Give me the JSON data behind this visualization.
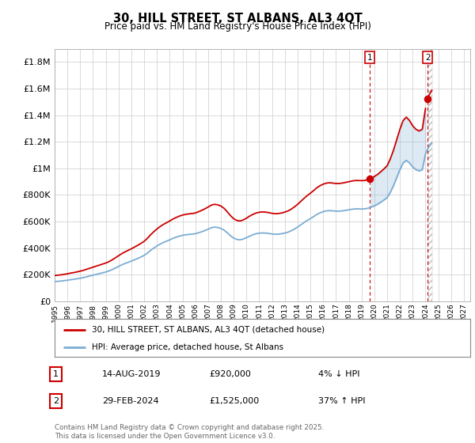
{
  "title": "30, HILL STREET, ST ALBANS, AL3 4QT",
  "subtitle": "Price paid vs. HM Land Registry's House Price Index (HPI)",
  "ylim": [
    0,
    1900000
  ],
  "yticks": [
    0,
    200000,
    400000,
    600000,
    800000,
    1000000,
    1200000,
    1400000,
    1600000,
    1800000
  ],
  "ytick_labels": [
    "£0",
    "£200K",
    "£400K",
    "£600K",
    "£800K",
    "£1M",
    "£1.2M",
    "£1.4M",
    "£1.6M",
    "£1.8M"
  ],
  "xlim_start": 1995.0,
  "xlim_end": 2027.5,
  "xticks": [
    1995,
    1996,
    1997,
    1998,
    1999,
    2000,
    2001,
    2002,
    2003,
    2004,
    2005,
    2006,
    2007,
    2008,
    2009,
    2010,
    2011,
    2012,
    2013,
    2014,
    2015,
    2016,
    2017,
    2018,
    2019,
    2020,
    2021,
    2022,
    2023,
    2024,
    2025,
    2026,
    2027
  ],
  "hpi_color": "#7aadd4",
  "sale_color": "#cc0000",
  "background_color": "#ffffff",
  "grid_color": "#cccccc",
  "legend_label_sale": "30, HILL STREET, ST ALBANS, AL3 4QT (detached house)",
  "legend_label_hpi": "HPI: Average price, detached house, St Albans",
  "annotation_1_label": "1",
  "annotation_1_date": "14-AUG-2019",
  "annotation_1_price": "£920,000",
  "annotation_1_hpi": "4% ↓ HPI",
  "annotation_1_year": 2019.62,
  "annotation_1_value": 920000,
  "annotation_2_label": "2",
  "annotation_2_date": "29-FEB-2024",
  "annotation_2_price": "£1,525,000",
  "annotation_2_hpi": "37% ↑ HPI",
  "annotation_2_year": 2024.17,
  "annotation_2_value": 1525000,
  "footnote": "Contains HM Land Registry data © Crown copyright and database right 2025.\nThis data is licensed under the Open Government Licence v3.0.",
  "hpi_data_x": [
    1995.0,
    1995.25,
    1995.5,
    1995.75,
    1996.0,
    1996.25,
    1996.5,
    1996.75,
    1997.0,
    1997.25,
    1997.5,
    1997.75,
    1998.0,
    1998.25,
    1998.5,
    1998.75,
    1999.0,
    1999.25,
    1999.5,
    1999.75,
    2000.0,
    2000.25,
    2000.5,
    2000.75,
    2001.0,
    2001.25,
    2001.5,
    2001.75,
    2002.0,
    2002.25,
    2002.5,
    2002.75,
    2003.0,
    2003.25,
    2003.5,
    2003.75,
    2004.0,
    2004.25,
    2004.5,
    2004.75,
    2005.0,
    2005.25,
    2005.5,
    2005.75,
    2006.0,
    2006.25,
    2006.5,
    2006.75,
    2007.0,
    2007.25,
    2007.5,
    2007.75,
    2008.0,
    2008.25,
    2008.5,
    2008.75,
    2009.0,
    2009.25,
    2009.5,
    2009.75,
    2010.0,
    2010.25,
    2010.5,
    2010.75,
    2011.0,
    2011.25,
    2011.5,
    2011.75,
    2012.0,
    2012.25,
    2012.5,
    2012.75,
    2013.0,
    2013.25,
    2013.5,
    2013.75,
    2014.0,
    2014.25,
    2014.5,
    2014.75,
    2015.0,
    2015.25,
    2015.5,
    2015.75,
    2016.0,
    2016.25,
    2016.5,
    2016.75,
    2017.0,
    2017.25,
    2017.5,
    2017.75,
    2018.0,
    2018.25,
    2018.5,
    2018.75,
    2019.0,
    2019.25,
    2019.5,
    2019.75,
    2020.0,
    2020.25,
    2020.5,
    2020.75,
    2021.0,
    2021.25,
    2021.5,
    2021.75,
    2022.0,
    2022.25,
    2022.5,
    2022.75,
    2023.0,
    2023.25,
    2023.5,
    2023.75,
    2024.0,
    2024.25,
    2024.5
  ],
  "hpi_data_y": [
    148000,
    150000,
    152000,
    155000,
    158000,
    162000,
    165000,
    169000,
    173000,
    178000,
    184000,
    190000,
    196000,
    202000,
    208000,
    214000,
    220000,
    228000,
    238000,
    250000,
    262000,
    274000,
    284000,
    293000,
    302000,
    312000,
    322000,
    333000,
    345000,
    362000,
    382000,
    400000,
    416000,
    430000,
    442000,
    452000,
    462000,
    473000,
    482000,
    490000,
    496000,
    500000,
    503000,
    505000,
    508000,
    515000,
    523000,
    532000,
    542000,
    553000,
    558000,
    555000,
    548000,
    535000,
    515000,
    493000,
    475000,
    465000,
    462000,
    468000,
    478000,
    490000,
    500000,
    508000,
    512000,
    514000,
    513000,
    510000,
    506000,
    504000,
    505000,
    508000,
    513000,
    520000,
    530000,
    543000,
    558000,
    575000,
    592000,
    608000,
    622000,
    637000,
    653000,
    665000,
    674000,
    680000,
    682000,
    680000,
    678000,
    678000,
    680000,
    684000,
    688000,
    692000,
    695000,
    695000,
    694000,
    695000,
    700000,
    708000,
    718000,
    730000,
    745000,
    762000,
    780000,
    820000,
    870000,
    930000,
    990000,
    1040000,
    1060000,
    1040000,
    1010000,
    990000,
    980000,
    990000,
    1110000,
    1160000,
    1190000
  ]
}
